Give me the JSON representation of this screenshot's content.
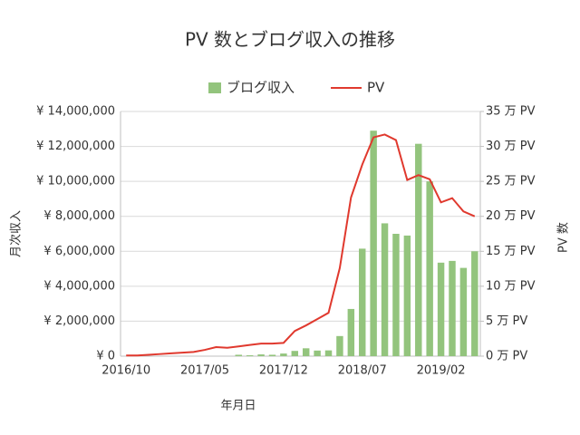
{
  "chart_data": {
    "type": "bar-line",
    "title": "PV 数とブログ収入の推移",
    "x_label": "年月日",
    "y_label": "月次収入",
    "y2_label": "PV 数",
    "legend": "top",
    "grid": true,
    "categories": [
      "2016/10",
      null,
      null,
      null,
      null,
      null,
      null,
      "2017/05",
      null,
      null,
      null,
      null,
      null,
      null,
      "2017/12",
      null,
      null,
      null,
      null,
      null,
      null,
      "2018/07",
      null,
      null,
      null,
      null,
      null,
      null,
      "2019/02",
      null,
      null,
      null
    ],
    "series": [
      {
        "name": "ブログ収入",
        "type": "bar",
        "color": "#93c47d",
        "values": [
          0,
          0,
          0,
          0,
          0,
          0,
          0,
          0,
          0,
          0,
          80000,
          50000,
          100000,
          80000,
          150000,
          300000,
          450000,
          320000,
          330000,
          1150000,
          2700000,
          6150000,
          12900000,
          7600000,
          7000000,
          6900000,
          12150000,
          10000000,
          5350000,
          5450000,
          5050000,
          6000000
        ]
      },
      {
        "name": "PV",
        "type": "line",
        "axis": "y2",
        "color": "#e0392e",
        "values": [
          0.1,
          0.1,
          0.2,
          0.3,
          0.4,
          0.5,
          0.6,
          0.9,
          1.3,
          1.2,
          1.4,
          1.6,
          1.8,
          1.8,
          1.9,
          3.6,
          4.4,
          5.3,
          6.2,
          12.6,
          22.7,
          27.4,
          31.3,
          31.7,
          30.9,
          25.2,
          25.9,
          25.3,
          22.0,
          22.6,
          20.7,
          20.0
        ]
      }
    ],
    "ylim": [
      0,
      14000000
    ],
    "yticks": [
      {
        "value": 0,
        "label": "¥ 0"
      },
      {
        "value": 2000000,
        "label": "¥ 2,000,000"
      },
      {
        "value": 4000000,
        "label": "¥ 4,000,000"
      },
      {
        "value": 6000000,
        "label": "¥ 6,000,000"
      },
      {
        "value": 8000000,
        "label": "¥ 8,000,000"
      },
      {
        "value": 10000000,
        "label": "¥ 10,000,000"
      },
      {
        "value": 12000000,
        "label": "¥ 12,000,000"
      },
      {
        "value": 14000000,
        "label": "¥ 14,000,000"
      }
    ],
    "y2lim": [
      0,
      35
    ],
    "y2ticks": [
      {
        "value": 0,
        "label": "0 万 PV"
      },
      {
        "value": 5,
        "label": "5 万 PV"
      },
      {
        "value": 10,
        "label": "10 万 PV"
      },
      {
        "value": 15,
        "label": "15 万 PV"
      },
      {
        "value": 20,
        "label": "20 万 PV"
      },
      {
        "value": 25,
        "label": "25 万 PV"
      },
      {
        "value": 30,
        "label": "30 万 PV"
      },
      {
        "value": 35,
        "label": "35 万 PV"
      }
    ]
  }
}
